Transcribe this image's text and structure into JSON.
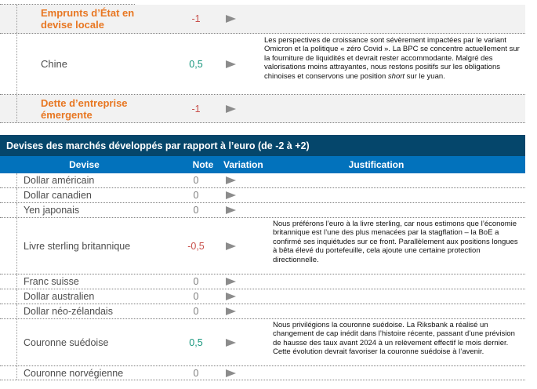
{
  "colors": {
    "accent_orange": "#e87722",
    "navy_header": "#05466b",
    "blue_header": "#0272bc",
    "negative_red": "#c8504b",
    "positive_green": "#17967d",
    "neutral_gray": "#7f7f7f",
    "highlight_row_bg": "#f2f2f2"
  },
  "top_section": {
    "rows": [
      {
        "label": "Emprunts d’État en devise locale",
        "note": "-1"
      },
      {
        "label": "Chine",
        "note": "0,5",
        "justification": {
          "before": "Les perspectives de croissance sont sévèrement impactées par le variant Omicron et la politique « zéro Covid ». La BPC se concentre actuellement sur la fourniture de liquidités et devrait rester accommodante. Malgré des valorisations moins attrayantes, nous restons positifs sur les obligations chinoises et conservons une position ",
          "italic": "short",
          "after": " sur le yuan."
        }
      },
      {
        "label": "Dette d’entreprise émergente",
        "note": "-1"
      }
    ]
  },
  "main_table": {
    "title": "Devises des marchés développés par rapport à l’euro (de -2 à +2)",
    "columns": {
      "devise": "Devise",
      "note": "Note",
      "variation": "Variation",
      "justification": "Justification"
    },
    "rows": [
      {
        "name": "Dollar américain",
        "note": "0",
        "justification": ""
      },
      {
        "name": "Dollar canadien",
        "note": "0",
        "justification": ""
      },
      {
        "name": "Yen japonais",
        "note": "0",
        "justification": ""
      },
      {
        "name": "Livre sterling britannique",
        "note": "-0,5",
        "justification": "Nous préférons l’euro à la livre sterling, car nous estimons que l’économie britannique est l’une des plus menacées par la stagflation – la BoE a confirmé ses inquiétudes sur ce front. Parallèlement aux positions longues à bêta élevé du portefeuille, cela ajoute une certaine protection directionnelle."
      },
      {
        "name": "Franc suisse",
        "note": "0",
        "justification": ""
      },
      {
        "name": "Dollar australien",
        "note": "0",
        "justification": ""
      },
      {
        "name": "Dollar néo-zélandais",
        "note": "0",
        "justification": ""
      },
      {
        "name": "Couronne suédoise",
        "note": "0,5",
        "justification": "Nous privilégions la couronne suédoise. La Riksbank a réalisé un changement de cap inédit dans l’histoire récente, passant d’une prévision de hausse des taux avant 2024 à un relèvement effectif le mois dernier. Cette évolution devrait favoriser la couronne suédoise à l’avenir."
      },
      {
        "name": "Couronne norvégienne",
        "note": "0",
        "justification": ""
      }
    ]
  }
}
